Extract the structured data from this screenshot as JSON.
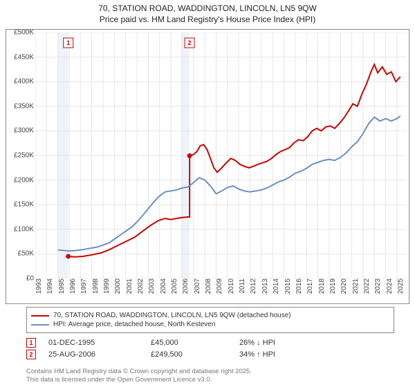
{
  "title": {
    "line1": "70, STATION ROAD, WADDINGTON, LINCOLN, LN5 9QW",
    "line2": "Price paid vs. HM Land Registry's House Price Index (HPI)"
  },
  "chart": {
    "type": "line",
    "background_color": "#ffffff",
    "grid_color": "#e6e6e6",
    "shade_color": "#eef3f9",
    "border_color": "#888888",
    "x": {
      "min": 1993,
      "max": 2025.8,
      "ticks": [
        1993,
        1994,
        1995,
        1996,
        1997,
        1998,
        1999,
        2000,
        2001,
        2002,
        2003,
        2004,
        2005,
        2006,
        2007,
        2008,
        2009,
        2010,
        2011,
        2012,
        2013,
        2014,
        2015,
        2016,
        2017,
        2018,
        2019,
        2020,
        2021,
        2022,
        2023,
        2024,
        2025
      ]
    },
    "y": {
      "min": 0,
      "max": 500000,
      "tick_step": 50000,
      "labels": [
        "£0",
        "£50K",
        "£100K",
        "£150K",
        "£200K",
        "£250K",
        "£300K",
        "£350K",
        "£400K",
        "£450K",
        "£500K"
      ]
    },
    "shaded_regions": [
      {
        "from": 1995.0,
        "to": 1995.92
      },
      {
        "from": 2005.9,
        "to": 2006.65
      }
    ],
    "sale_markers": [
      {
        "n": 1,
        "x": 1995.92,
        "y": 45000,
        "color": "#cc0000"
      },
      {
        "n": 2,
        "x": 2006.65,
        "y": 249500,
        "color": "#cc0000"
      }
    ],
    "series": [
      {
        "id": "price_paid",
        "color": "#cc0000",
        "width": 2,
        "points": [
          [
            1995.92,
            45000
          ],
          [
            1996.5,
            44000
          ],
          [
            1997.2,
            45000
          ],
          [
            1998.0,
            48000
          ],
          [
            1998.8,
            52000
          ],
          [
            1999.5,
            58000
          ],
          [
            2000.2,
            66000
          ],
          [
            2001.0,
            75000
          ],
          [
            2001.8,
            84000
          ],
          [
            2002.5,
            96000
          ],
          [
            2003.2,
            108000
          ],
          [
            2003.9,
            118000
          ],
          [
            2004.5,
            122000
          ],
          [
            2005.0,
            120000
          ],
          [
            2005.5,
            122000
          ],
          [
            2006.0,
            124000
          ],
          [
            2006.5,
            125000
          ],
          [
            2006.65,
            125000
          ],
          [
            2006.66,
            249500
          ],
          [
            2007.0,
            252000
          ],
          [
            2007.3,
            258000
          ],
          [
            2007.6,
            270000
          ],
          [
            2007.9,
            272000
          ],
          [
            2008.2,
            262000
          ],
          [
            2008.5,
            244000
          ],
          [
            2008.8,
            225000
          ],
          [
            2009.1,
            216000
          ],
          [
            2009.5,
            225000
          ],
          [
            2009.9,
            235000
          ],
          [
            2010.3,
            244000
          ],
          [
            2010.7,
            240000
          ],
          [
            2011.1,
            232000
          ],
          [
            2011.5,
            228000
          ],
          [
            2011.9,
            225000
          ],
          [
            2012.3,
            228000
          ],
          [
            2012.7,
            232000
          ],
          [
            2013.1,
            235000
          ],
          [
            2013.5,
            238000
          ],
          [
            2013.9,
            244000
          ],
          [
            2014.3,
            252000
          ],
          [
            2014.7,
            258000
          ],
          [
            2015.1,
            262000
          ],
          [
            2015.5,
            266000
          ],
          [
            2015.9,
            276000
          ],
          [
            2016.3,
            282000
          ],
          [
            2016.7,
            280000
          ],
          [
            2017.1,
            288000
          ],
          [
            2017.5,
            300000
          ],
          [
            2017.9,
            305000
          ],
          [
            2018.3,
            300000
          ],
          [
            2018.7,
            308000
          ],
          [
            2019.1,
            310000
          ],
          [
            2019.5,
            305000
          ],
          [
            2019.9,
            315000
          ],
          [
            2020.3,
            326000
          ],
          [
            2020.7,
            340000
          ],
          [
            2021.1,
            355000
          ],
          [
            2021.5,
            350000
          ],
          [
            2021.9,
            375000
          ],
          [
            2022.3,
            395000
          ],
          [
            2022.7,
            420000
          ],
          [
            2023.0,
            435000
          ],
          [
            2023.3,
            418000
          ],
          [
            2023.7,
            430000
          ],
          [
            2024.1,
            415000
          ],
          [
            2024.5,
            420000
          ],
          [
            2024.9,
            400000
          ],
          [
            2025.3,
            410000
          ]
        ]
      },
      {
        "id": "hpi",
        "color": "#6a8fc5",
        "width": 2,
        "points": [
          [
            1995.0,
            58000
          ],
          [
            1995.5,
            57000
          ],
          [
            1996.0,
            56000
          ],
          [
            1996.5,
            56500
          ],
          [
            1997.0,
            58000
          ],
          [
            1997.5,
            60000
          ],
          [
            1998.0,
            62000
          ],
          [
            1998.5,
            64000
          ],
          [
            1999.0,
            68000
          ],
          [
            1999.5,
            72000
          ],
          [
            2000.0,
            80000
          ],
          [
            2000.5,
            88000
          ],
          [
            2001.0,
            96000
          ],
          [
            2001.5,
            104000
          ],
          [
            2002.0,
            115000
          ],
          [
            2002.5,
            128000
          ],
          [
            2003.0,
            142000
          ],
          [
            2003.5,
            156000
          ],
          [
            2004.0,
            168000
          ],
          [
            2004.5,
            176000
          ],
          [
            2005.0,
            178000
          ],
          [
            2005.5,
            180000
          ],
          [
            2006.0,
            184000
          ],
          [
            2006.5,
            186000
          ],
          [
            2007.0,
            195000
          ],
          [
            2007.5,
            205000
          ],
          [
            2008.0,
            200000
          ],
          [
            2008.5,
            188000
          ],
          [
            2009.0,
            172000
          ],
          [
            2009.5,
            178000
          ],
          [
            2010.0,
            185000
          ],
          [
            2010.5,
            188000
          ],
          [
            2011.0,
            182000
          ],
          [
            2011.5,
            178000
          ],
          [
            2012.0,
            176000
          ],
          [
            2012.5,
            178000
          ],
          [
            2013.0,
            180000
          ],
          [
            2013.5,
            184000
          ],
          [
            2014.0,
            190000
          ],
          [
            2014.5,
            196000
          ],
          [
            2015.0,
            200000
          ],
          [
            2015.5,
            206000
          ],
          [
            2016.0,
            214000
          ],
          [
            2016.5,
            218000
          ],
          [
            2017.0,
            224000
          ],
          [
            2017.5,
            232000
          ],
          [
            2018.0,
            236000
          ],
          [
            2018.5,
            240000
          ],
          [
            2019.0,
            242000
          ],
          [
            2019.5,
            240000
          ],
          [
            2020.0,
            246000
          ],
          [
            2020.5,
            255000
          ],
          [
            2021.0,
            268000
          ],
          [
            2021.5,
            278000
          ],
          [
            2022.0,
            295000
          ],
          [
            2022.5,
            315000
          ],
          [
            2023.0,
            328000
          ],
          [
            2023.5,
            320000
          ],
          [
            2024.0,
            325000
          ],
          [
            2024.5,
            320000
          ],
          [
            2025.0,
            325000
          ],
          [
            2025.3,
            330000
          ]
        ]
      }
    ]
  },
  "legend": {
    "items": [
      {
        "color": "#cc0000",
        "label": "70, STATION ROAD, WADDINGTON, LINCOLN, LN5 9QW (detached house)"
      },
      {
        "color": "#6a8fc5",
        "label": "HPI: Average price, detached house, North Kesteven"
      }
    ]
  },
  "sales": [
    {
      "n": "1",
      "color": "#cc0000",
      "date": "01-DEC-1995",
      "price": "£45,000",
      "delta": "26% ↓ HPI"
    },
    {
      "n": "2",
      "color": "#cc0000",
      "date": "25-AUG-2006",
      "price": "£249,500",
      "delta": "34% ↑ HPI"
    }
  ],
  "attribution": {
    "line1": "Contains HM Land Registry data © Crown copyright and database right 2025.",
    "line2": "This data is licensed under the Open Government Licence v3.0."
  }
}
